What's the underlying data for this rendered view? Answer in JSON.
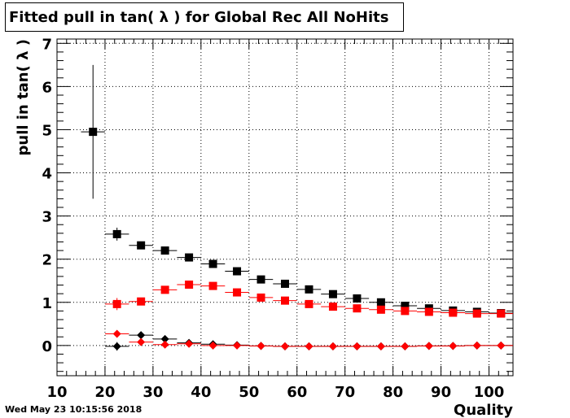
{
  "title": "Fitted pull in tan( λ ) for Global Rec All NoHits",
  "datestamp": "Wed May 23 10:15:56 2018",
  "chart_data": {
    "type": "scatter",
    "xlabel": "Quality",
    "ylabel": "pull in tan( λ )",
    "xlim": [
      10,
      105
    ],
    "ylim": [
      -0.7,
      7.1
    ],
    "x_ticks": [
      10,
      20,
      30,
      40,
      50,
      60,
      70,
      80,
      90,
      100
    ],
    "y_ticks": [
      0,
      1,
      2,
      3,
      4,
      5,
      6,
      7
    ],
    "grid": true,
    "x_bin_half_width": 2.5,
    "series": [
      {
        "marker": "square",
        "color": "#000000",
        "x": [
          17.5,
          22.5,
          27.5,
          32.5,
          37.5,
          42.5,
          47.5,
          52.5,
          57.5,
          62.5,
          67.5,
          72.5,
          77.5,
          82.5,
          87.5,
          92.5,
          97.5,
          102.5
        ],
        "y": [
          4.95,
          2.58,
          2.32,
          2.2,
          2.04,
          1.89,
          1.72,
          1.53,
          1.43,
          1.3,
          1.19,
          1.09,
          1.0,
          0.92,
          0.86,
          0.81,
          0.78,
          0.75
        ],
        "yerr": [
          1.55,
          0.15,
          0.07,
          0.05,
          0.04,
          0.04,
          0.04,
          0.03,
          0.03,
          0.03,
          0.03,
          0.03,
          0.03,
          0.03,
          0.03,
          0.03,
          0.03,
          0.03
        ]
      },
      {
        "marker": "square",
        "color": "#ff0000",
        "x": [
          22.5,
          27.5,
          32.5,
          37.5,
          42.5,
          47.5,
          52.5,
          57.5,
          62.5,
          67.5,
          72.5,
          77.5,
          82.5,
          87.5,
          92.5,
          97.5,
          102.5
        ],
        "y": [
          0.96,
          1.02,
          1.29,
          1.41,
          1.38,
          1.23,
          1.11,
          1.04,
          0.96,
          0.9,
          0.86,
          0.83,
          0.8,
          0.78,
          0.76,
          0.74,
          0.74
        ],
        "yerr": [
          0.14,
          0.06,
          0.05,
          0.04,
          0.04,
          0.03,
          0.03,
          0.03,
          0.03,
          0.03,
          0.03,
          0.03,
          0.03,
          0.03,
          0.03,
          0.03,
          0.03
        ]
      },
      {
        "marker": "diamond",
        "color": "#000000",
        "x": [
          22.5,
          27.5,
          32.5,
          37.5,
          42.5,
          47.5,
          52.5,
          57.5,
          62.5,
          67.5,
          72.5,
          77.5,
          82.5,
          87.5,
          92.5,
          97.5,
          102.5
        ],
        "y": [
          -0.02,
          0.24,
          0.15,
          0.06,
          0.03,
          0.01,
          -0.01,
          -0.02,
          -0.02,
          -0.02,
          -0.02,
          -0.02,
          -0.02,
          -0.01,
          -0.01,
          0.0,
          0.0
        ],
        "yerr": [
          0.1,
          0.05,
          0.03,
          0.02,
          0.02,
          0.01,
          0.01,
          0.01,
          0.01,
          0.01,
          0.01,
          0.01,
          0.01,
          0.01,
          0.01,
          0.01,
          0.01
        ]
      },
      {
        "marker": "diamond",
        "color": "#ff0000",
        "x": [
          22.5,
          27.5,
          32.5,
          37.5,
          42.5,
          47.5,
          52.5,
          57.5,
          62.5,
          67.5,
          72.5,
          77.5,
          82.5,
          87.5,
          92.5,
          97.5,
          102.5
        ],
        "y": [
          0.27,
          0.08,
          0.02,
          0.04,
          0.0,
          0.0,
          -0.01,
          -0.02,
          -0.02,
          -0.02,
          -0.02,
          -0.02,
          -0.02,
          -0.01,
          -0.01,
          0.0,
          0.0
        ],
        "yerr": [
          0.08,
          0.04,
          0.02,
          0.02,
          0.01,
          0.01,
          0.01,
          0.01,
          0.01,
          0.01,
          0.01,
          0.01,
          0.01,
          0.01,
          0.01,
          0.01,
          0.01
        ]
      }
    ]
  }
}
